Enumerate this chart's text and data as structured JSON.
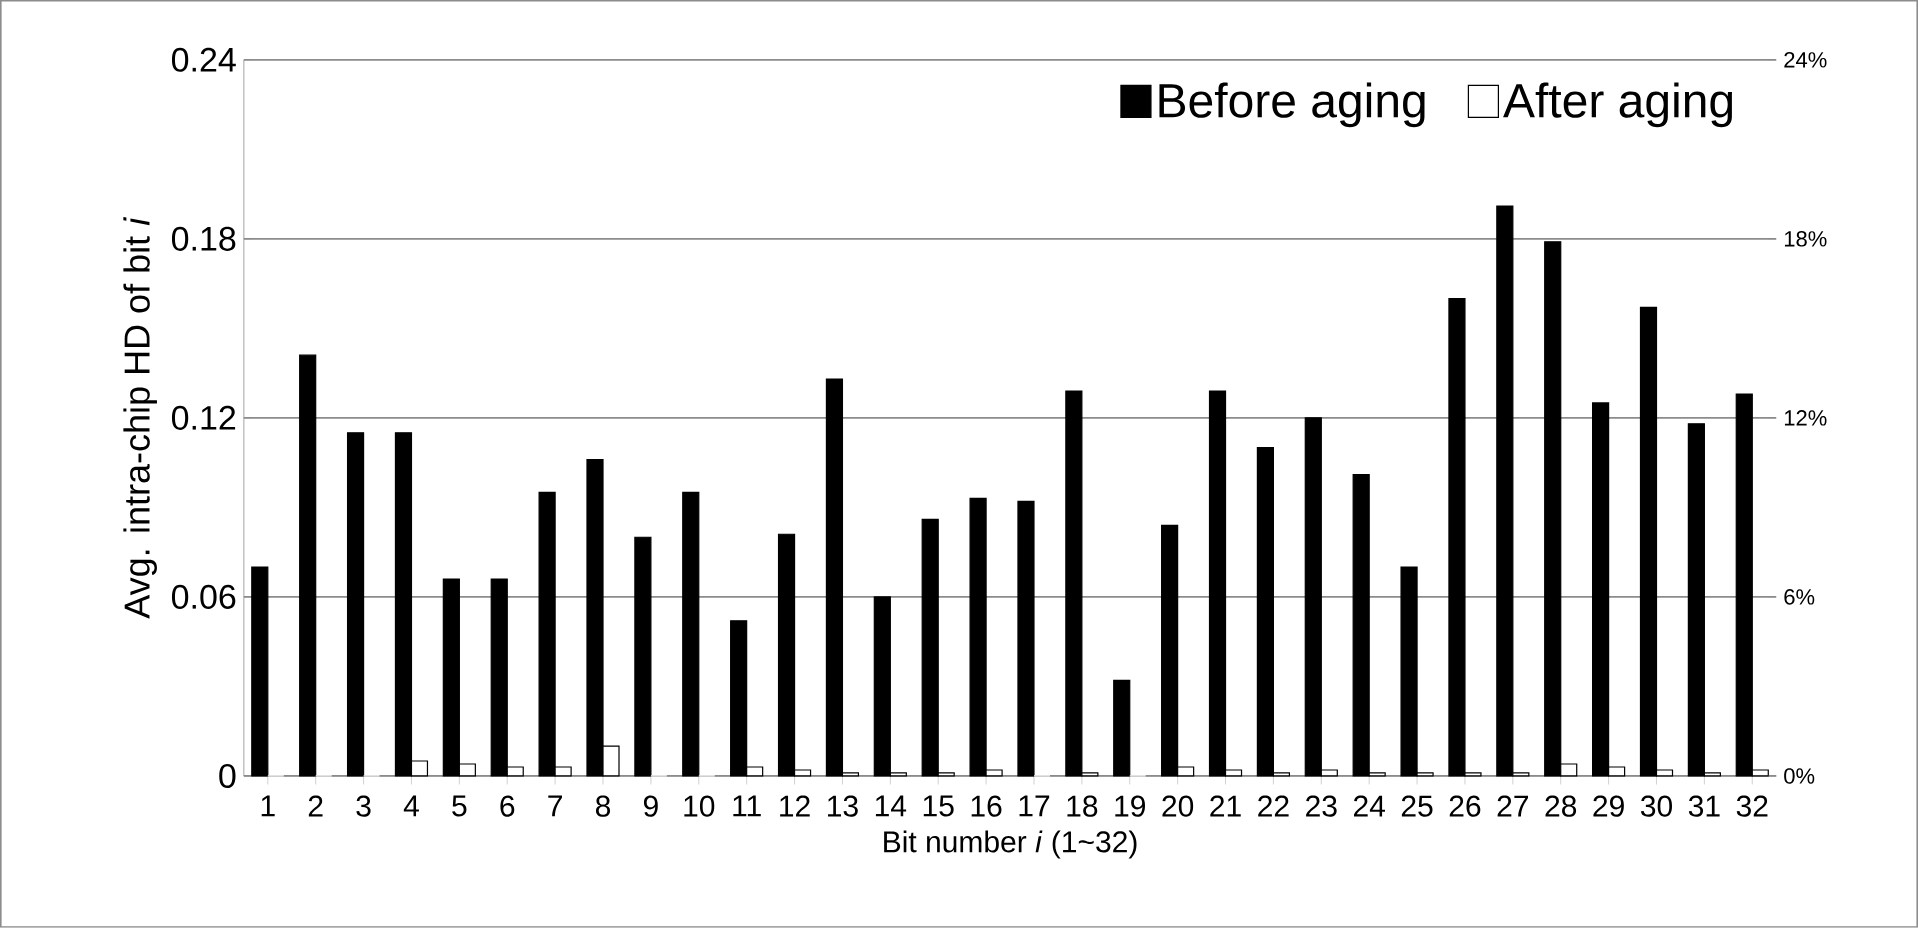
{
  "chart_data": {
    "type": "bar",
    "categories": [
      "1",
      "2",
      "3",
      "4",
      "5",
      "6",
      "7",
      "8",
      "9",
      "10",
      "11",
      "12",
      "13",
      "14",
      "15",
      "16",
      "17",
      "18",
      "19",
      "20",
      "21",
      "22",
      "23",
      "24",
      "25",
      "26",
      "27",
      "28",
      "29",
      "30",
      "31",
      "32"
    ],
    "series": [
      {
        "name": "Before aging",
        "color": "#000000",
        "values": [
          0.07,
          0.141,
          0.115,
          0.115,
          0.066,
          0.066,
          0.095,
          0.106,
          0.08,
          0.095,
          0.052,
          0.081,
          0.133,
          0.06,
          0.086,
          0.093,
          0.092,
          0.129,
          0.032,
          0.084,
          0.129,
          0.11,
          0.12,
          0.101,
          0.07,
          0.16,
          0.191,
          0.179,
          0.125,
          0.157,
          0.118,
          0.128
        ]
      },
      {
        "name": "After aging",
        "color": "#ffffff",
        "values": [
          0,
          0,
          0,
          0.005,
          0.004,
          0.003,
          0.003,
          0.01,
          0,
          0,
          0.003,
          0.002,
          0.001,
          0.001,
          0.001,
          0.002,
          0,
          0.001,
          0,
          0.003,
          0.002,
          0.001,
          0.002,
          0.001,
          0.001,
          0.001,
          0.001,
          0.004,
          0.003,
          0.002,
          0.001,
          0.002
        ]
      }
    ],
    "xlabel": "Bit number *i* (1~32)",
    "ylabel": "Avg. intra-chip HD of bit *i*",
    "ylim": [
      0,
      0.24
    ],
    "yticks": [
      0,
      0.06,
      0.12,
      0.18,
      0.24
    ],
    "y2lim": [
      0,
      24
    ],
    "y2ticks": [
      {
        "value": 0,
        "label": "0%"
      },
      {
        "value": 6,
        "label": "6%"
      },
      {
        "value": 12,
        "label": "12%"
      },
      {
        "value": 18,
        "label": "18%"
      },
      {
        "value": 24,
        "label": "24%"
      }
    ],
    "grid": "y",
    "legend": "top right"
  }
}
